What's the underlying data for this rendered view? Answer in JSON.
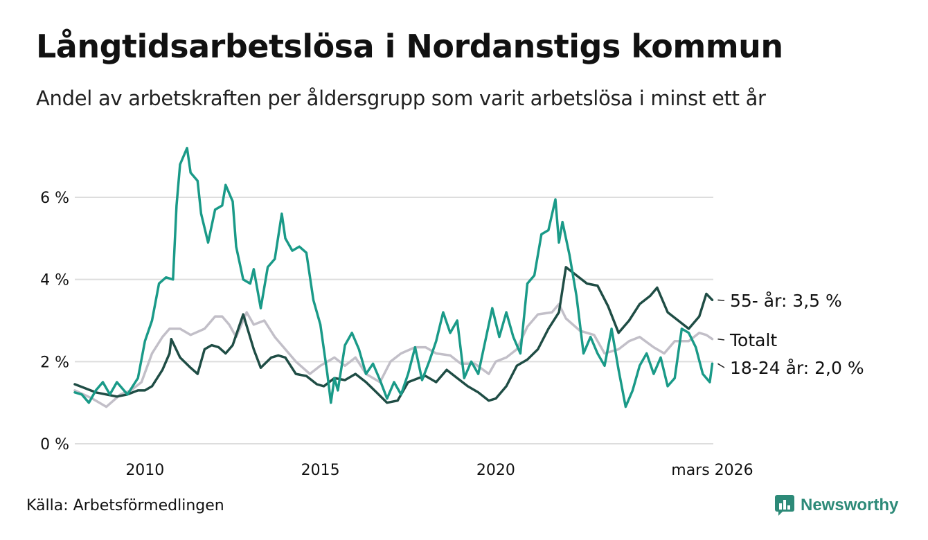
{
  "title": "Långtidsarbetslösa i Nordanstigs kommun",
  "subtitle": "Andel av arbetskraften per åldersgrupp som varit arbetslösa i minst ett år",
  "source": "Källa: Arbetsförmedlingen",
  "logo_text": "Newsworthy",
  "colors": {
    "youth": "#1a9a88",
    "senior": "#1f4d45",
    "total": "#c2bfc8",
    "grid": "#dddddd",
    "logo": "#2d8a78"
  },
  "chart_data": {
    "type": "line",
    "title": "Långtidsarbetslösa i Nordanstigs kommun",
    "xlabel": "",
    "ylabel": "",
    "xlim": [
      2008.0,
      2026.2
    ],
    "ylim": [
      0,
      7.2
    ],
    "yticks": [
      0,
      2,
      4,
      6
    ],
    "ytick_labels": [
      "0 %",
      "2 %",
      "4 %",
      "6 %"
    ],
    "xticks": [
      2010,
      2015,
      2020,
      2026.17
    ],
    "xtick_labels": [
      "2010",
      "2015",
      "2020",
      "mars 2026"
    ],
    "series": [
      {
        "name": "Totalt",
        "label": "Totalt",
        "color": "#c2bfc8",
        "points": [
          [
            2008.0,
            1.3
          ],
          [
            2008.5,
            1.1
          ],
          [
            2008.9,
            0.9
          ],
          [
            2009.3,
            1.2
          ],
          [
            2009.6,
            1.3
          ],
          [
            2009.9,
            1.5
          ],
          [
            2010.2,
            2.2
          ],
          [
            2010.5,
            2.6
          ],
          [
            2010.7,
            2.8
          ],
          [
            2011.0,
            2.8
          ],
          [
            2011.3,
            2.65
          ],
          [
            2011.7,
            2.8
          ],
          [
            2012.0,
            3.1
          ],
          [
            2012.2,
            3.1
          ],
          [
            2012.4,
            2.9
          ],
          [
            2012.6,
            2.6
          ],
          [
            2012.9,
            3.2
          ],
          [
            2013.1,
            2.9
          ],
          [
            2013.4,
            3.0
          ],
          [
            2013.7,
            2.6
          ],
          [
            2014.0,
            2.3
          ],
          [
            2014.3,
            2.0
          ],
          [
            2014.7,
            1.7
          ],
          [
            2015.0,
            1.9
          ],
          [
            2015.4,
            2.1
          ],
          [
            2015.7,
            1.9
          ],
          [
            2016.0,
            2.1
          ],
          [
            2016.3,
            1.7
          ],
          [
            2016.7,
            1.5
          ],
          [
            2017.0,
            2.0
          ],
          [
            2017.3,
            2.2
          ],
          [
            2017.7,
            2.35
          ],
          [
            2018.0,
            2.35
          ],
          [
            2018.3,
            2.2
          ],
          [
            2018.7,
            2.15
          ],
          [
            2019.0,
            1.95
          ],
          [
            2019.4,
            1.95
          ],
          [
            2019.8,
            1.7
          ],
          [
            2020.0,
            2.0
          ],
          [
            2020.3,
            2.1
          ],
          [
            2020.6,
            2.3
          ],
          [
            2020.9,
            2.85
          ],
          [
            2021.2,
            3.15
          ],
          [
            2021.6,
            3.2
          ],
          [
            2021.8,
            3.4
          ],
          [
            2022.0,
            3.05
          ],
          [
            2022.4,
            2.75
          ],
          [
            2022.8,
            2.65
          ],
          [
            2023.1,
            2.2
          ],
          [
            2023.5,
            2.3
          ],
          [
            2023.8,
            2.5
          ],
          [
            2024.1,
            2.6
          ],
          [
            2024.5,
            2.35
          ],
          [
            2024.8,
            2.2
          ],
          [
            2025.1,
            2.5
          ],
          [
            2025.5,
            2.5
          ],
          [
            2025.8,
            2.7
          ],
          [
            2026.0,
            2.65
          ],
          [
            2026.17,
            2.55
          ]
        ]
      },
      {
        "name": "55- år",
        "label": "55- år: 3,5 %",
        "color": "#1f4d45",
        "points": [
          [
            2008.0,
            1.45
          ],
          [
            2008.3,
            1.35
          ],
          [
            2008.6,
            1.25
          ],
          [
            2008.9,
            1.2
          ],
          [
            2009.2,
            1.15
          ],
          [
            2009.5,
            1.2
          ],
          [
            2009.8,
            1.3
          ],
          [
            2010.0,
            1.3
          ],
          [
            2010.2,
            1.4
          ],
          [
            2010.5,
            1.8
          ],
          [
            2010.7,
            2.2
          ],
          [
            2010.75,
            2.55
          ],
          [
            2011.0,
            2.1
          ],
          [
            2011.3,
            1.85
          ],
          [
            2011.5,
            1.7
          ],
          [
            2011.7,
            2.3
          ],
          [
            2011.9,
            2.4
          ],
          [
            2012.1,
            2.35
          ],
          [
            2012.3,
            2.2
          ],
          [
            2012.5,
            2.4
          ],
          [
            2012.8,
            3.15
          ],
          [
            2013.1,
            2.3
          ],
          [
            2013.3,
            1.85
          ],
          [
            2013.6,
            2.1
          ],
          [
            2013.8,
            2.15
          ],
          [
            2014.0,
            2.1
          ],
          [
            2014.3,
            1.7
          ],
          [
            2014.6,
            1.65
          ],
          [
            2014.9,
            1.45
          ],
          [
            2015.1,
            1.4
          ],
          [
            2015.4,
            1.6
          ],
          [
            2015.7,
            1.55
          ],
          [
            2016.0,
            1.7
          ],
          [
            2016.3,
            1.5
          ],
          [
            2016.6,
            1.25
          ],
          [
            2016.9,
            1.0
          ],
          [
            2017.2,
            1.05
          ],
          [
            2017.5,
            1.5
          ],
          [
            2017.8,
            1.6
          ],
          [
            2018.0,
            1.65
          ],
          [
            2018.3,
            1.5
          ],
          [
            2018.6,
            1.8
          ],
          [
            2018.9,
            1.6
          ],
          [
            2019.2,
            1.4
          ],
          [
            2019.5,
            1.25
          ],
          [
            2019.8,
            1.05
          ],
          [
            2020.0,
            1.1
          ],
          [
            2020.3,
            1.4
          ],
          [
            2020.6,
            1.9
          ],
          [
            2020.9,
            2.05
          ],
          [
            2021.2,
            2.3
          ],
          [
            2021.5,
            2.8
          ],
          [
            2021.8,
            3.2
          ],
          [
            2022.0,
            4.3
          ],
          [
            2022.3,
            4.1
          ],
          [
            2022.6,
            3.9
          ],
          [
            2022.9,
            3.85
          ],
          [
            2023.2,
            3.35
          ],
          [
            2023.5,
            2.7
          ],
          [
            2023.8,
            3.0
          ],
          [
            2024.1,
            3.4
          ],
          [
            2024.4,
            3.6
          ],
          [
            2024.6,
            3.8
          ],
          [
            2024.9,
            3.2
          ],
          [
            2025.2,
            3.0
          ],
          [
            2025.5,
            2.8
          ],
          [
            2025.8,
            3.1
          ],
          [
            2026.0,
            3.65
          ],
          [
            2026.17,
            3.5
          ]
        ]
      },
      {
        "name": "18-24 år",
        "label": "18-24 år: 2,0 %",
        "color": "#1a9a88",
        "points": [
          [
            2008.0,
            1.25
          ],
          [
            2008.2,
            1.2
          ],
          [
            2008.4,
            1.0
          ],
          [
            2008.6,
            1.3
          ],
          [
            2008.8,
            1.5
          ],
          [
            2009.0,
            1.2
          ],
          [
            2009.2,
            1.5
          ],
          [
            2009.5,
            1.2
          ],
          [
            2009.8,
            1.6
          ],
          [
            2010.0,
            2.5
          ],
          [
            2010.2,
            3.0
          ],
          [
            2010.4,
            3.9
          ],
          [
            2010.6,
            4.05
          ],
          [
            2010.8,
            4.0
          ],
          [
            2010.9,
            5.8
          ],
          [
            2011.0,
            6.8
          ],
          [
            2011.2,
            7.2
          ],
          [
            2011.3,
            6.6
          ],
          [
            2011.5,
            6.4
          ],
          [
            2011.6,
            5.6
          ],
          [
            2011.8,
            4.9
          ],
          [
            2012.0,
            5.7
          ],
          [
            2012.2,
            5.8
          ],
          [
            2012.3,
            6.3
          ],
          [
            2012.5,
            5.9
          ],
          [
            2012.6,
            4.8
          ],
          [
            2012.8,
            4.0
          ],
          [
            2013.0,
            3.9
          ],
          [
            2013.1,
            4.25
          ],
          [
            2013.3,
            3.3
          ],
          [
            2013.5,
            4.3
          ],
          [
            2013.7,
            4.5
          ],
          [
            2013.9,
            5.6
          ],
          [
            2014.0,
            5.0
          ],
          [
            2014.2,
            4.7
          ],
          [
            2014.4,
            4.8
          ],
          [
            2014.6,
            4.65
          ],
          [
            2014.8,
            3.5
          ],
          [
            2015.0,
            2.9
          ],
          [
            2015.2,
            1.7
          ],
          [
            2015.3,
            1.0
          ],
          [
            2015.4,
            1.6
          ],
          [
            2015.5,
            1.3
          ],
          [
            2015.7,
            2.4
          ],
          [
            2015.9,
            2.7
          ],
          [
            2016.1,
            2.3
          ],
          [
            2016.3,
            1.7
          ],
          [
            2016.5,
            1.95
          ],
          [
            2016.7,
            1.55
          ],
          [
            2016.9,
            1.1
          ],
          [
            2017.1,
            1.5
          ],
          [
            2017.3,
            1.2
          ],
          [
            2017.5,
            1.7
          ],
          [
            2017.7,
            2.35
          ],
          [
            2017.9,
            1.55
          ],
          [
            2018.1,
            2.0
          ],
          [
            2018.3,
            2.5
          ],
          [
            2018.5,
            3.2
          ],
          [
            2018.7,
            2.7
          ],
          [
            2018.9,
            3.0
          ],
          [
            2019.1,
            1.6
          ],
          [
            2019.3,
            2.0
          ],
          [
            2019.5,
            1.7
          ],
          [
            2019.7,
            2.5
          ],
          [
            2019.9,
            3.3
          ],
          [
            2020.1,
            2.6
          ],
          [
            2020.3,
            3.2
          ],
          [
            2020.5,
            2.6
          ],
          [
            2020.7,
            2.2
          ],
          [
            2020.9,
            3.9
          ],
          [
            2021.1,
            4.1
          ],
          [
            2021.3,
            5.1
          ],
          [
            2021.5,
            5.2
          ],
          [
            2021.7,
            5.95
          ],
          [
            2021.8,
            4.9
          ],
          [
            2021.9,
            5.4
          ],
          [
            2022.1,
            4.6
          ],
          [
            2022.3,
            3.6
          ],
          [
            2022.5,
            2.2
          ],
          [
            2022.7,
            2.6
          ],
          [
            2022.9,
            2.2
          ],
          [
            2023.1,
            1.9
          ],
          [
            2023.3,
            2.8
          ],
          [
            2023.5,
            1.8
          ],
          [
            2023.7,
            0.9
          ],
          [
            2023.9,
            1.3
          ],
          [
            2024.1,
            1.9
          ],
          [
            2024.3,
            2.2
          ],
          [
            2024.5,
            1.7
          ],
          [
            2024.7,
            2.1
          ],
          [
            2024.9,
            1.4
          ],
          [
            2025.1,
            1.6
          ],
          [
            2025.3,
            2.8
          ],
          [
            2025.5,
            2.7
          ],
          [
            2025.7,
            2.35
          ],
          [
            2025.9,
            1.7
          ],
          [
            2026.1,
            1.5
          ],
          [
            2026.17,
            1.95
          ]
        ]
      }
    ]
  }
}
